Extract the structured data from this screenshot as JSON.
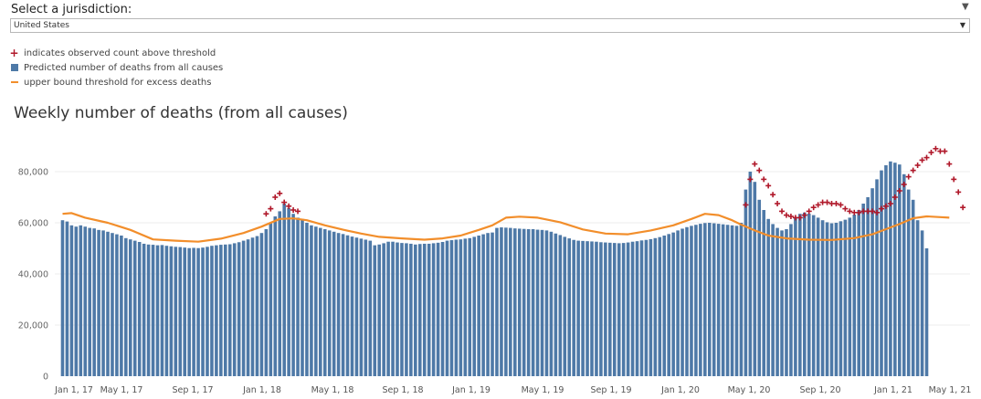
{
  "filter": {
    "label": "Select a jurisdiction:",
    "selected": "United States"
  },
  "legend": {
    "items": [
      {
        "symbol": "plus-icon",
        "label": "indicates observed count above threshold",
        "color": "#b0182a"
      },
      {
        "symbol": "square-icon",
        "label": "Predicted number of deaths from all causes",
        "color": "#4e79a7"
      },
      {
        "symbol": "line-icon",
        "label": "upper bound threshold for excess deaths",
        "color": "#f28e2b"
      }
    ]
  },
  "chart_data": {
    "type": "bar",
    "title": "Weekly number of deaths (from all causes)",
    "xlabel": "",
    "ylabel": "",
    "ylim": [
      0,
      90000
    ],
    "grid": true,
    "y_ticks": [
      0,
      20000,
      40000,
      60000,
      80000
    ],
    "y_tick_labels": [
      "0",
      "20,000",
      "40,000",
      "60,000",
      "80,000"
    ],
    "x_tick_labels": [
      "Jan 1, 17",
      "May 1, 17",
      "Sep 1, 17",
      "Jan 1, 18",
      "May 1, 18",
      "Sep 1, 18",
      "Jan 1, 19",
      "May 1, 19",
      "Sep 1, 19",
      "Jan 1, 20",
      "May 1, 20",
      "Sep 1, 20",
      "Jan 1, 21",
      "May 1, 21"
    ],
    "series": [
      {
        "name": "Predicted number of deaths from all causes",
        "color": "#4e79a7",
        "values": [
          61000,
          60500,
          59000,
          58500,
          59000,
          58500,
          58000,
          57800,
          57200,
          57000,
          56500,
          56000,
          55500,
          55000,
          54000,
          53500,
          53000,
          52500,
          51800,
          51500,
          51400,
          51200,
          51300,
          51000,
          50800,
          50600,
          50500,
          50300,
          50100,
          50200,
          50100,
          50300,
          50600,
          51000,
          51200,
          51400,
          51500,
          51600,
          52000,
          52400,
          53000,
          53500,
          54200,
          54800,
          56000,
          57500,
          60000,
          62500,
          64500,
          67500,
          65800,
          63500,
          62000,
          61500,
          60000,
          59000,
          58500,
          58000,
          57500,
          57000,
          56500,
          56000,
          55600,
          55100,
          54600,
          54200,
          53800,
          53400,
          53000,
          51200,
          51500,
          52000,
          52600,
          52600,
          52300,
          52100,
          52000,
          51800,
          51500,
          51700,
          51800,
          51800,
          52000,
          52200,
          52500,
          53000,
          53200,
          53400,
          53500,
          53800,
          54000,
          54500,
          55000,
          55500,
          56000,
          56200,
          58000,
          58200,
          58100,
          58000,
          57800,
          57700,
          57600,
          57500,
          57500,
          57300,
          57200,
          57000,
          56500,
          55800,
          55200,
          54500,
          53900,
          53300,
          53000,
          52900,
          52800,
          52700,
          52600,
          52400,
          52300,
          52200,
          52100,
          52000,
          52100,
          52300,
          52600,
          52800,
          53100,
          53300,
          53600,
          54000,
          54400,
          55000,
          55600,
          56200,
          57000,
          57700,
          58300,
          58800,
          59200,
          59600,
          59900,
          60000,
          59800,
          59600,
          59400,
          59200,
          59000,
          58800,
          60000,
          73000,
          80000,
          76000,
          69000,
          65000,
          61500,
          59500,
          58000,
          57000,
          57500,
          59500,
          62000,
          63500,
          64000,
          63600,
          63000,
          62000,
          61000,
          60200,
          59800,
          60000,
          60600,
          61200,
          62000,
          63200,
          65000,
          67500,
          70000,
          73500,
          77000,
          80500,
          82500,
          84000,
          83500,
          82800,
          79000,
          73000,
          69000,
          61000,
          57000,
          50000
        ]
      },
      {
        "name": "upper bound threshold for excess deaths",
        "color": "#f28e2b",
        "points": [
          [
            0,
            63500
          ],
          [
            2,
            63800
          ],
          [
            5,
            62000
          ],
          [
            10,
            60000
          ],
          [
            15,
            57200
          ],
          [
            20,
            53500
          ],
          [
            25,
            53000
          ],
          [
            30,
            52600
          ],
          [
            35,
            53800
          ],
          [
            40,
            56000
          ],
          [
            44,
            58500
          ],
          [
            48,
            61500
          ],
          [
            51,
            61700
          ],
          [
            54,
            61000
          ],
          [
            58,
            59000
          ],
          [
            62,
            57300
          ],
          [
            66,
            55800
          ],
          [
            70,
            54500
          ],
          [
            75,
            53900
          ],
          [
            80,
            53400
          ],
          [
            84,
            53900
          ],
          [
            88,
            55000
          ],
          [
            92,
            57200
          ],
          [
            95,
            59000
          ],
          [
            98,
            62000
          ],
          [
            101,
            62400
          ],
          [
            105,
            62000
          ],
          [
            110,
            60200
          ],
          [
            115,
            57400
          ],
          [
            120,
            55800
          ],
          [
            125,
            55500
          ],
          [
            130,
            57000
          ],
          [
            135,
            59000
          ],
          [
            139,
            61500
          ],
          [
            142,
            63500
          ],
          [
            145,
            63000
          ],
          [
            148,
            61000
          ],
          [
            150,
            59300
          ],
          [
            153,
            57000
          ],
          [
            156,
            55000
          ],
          [
            160,
            53900
          ],
          [
            165,
            53400
          ],
          [
            170,
            53300
          ],
          [
            175,
            54000
          ],
          [
            179,
            55500
          ],
          [
            182,
            57500
          ],
          [
            185,
            59500
          ],
          [
            188,
            61800
          ],
          [
            191,
            62500
          ],
          [
            194,
            62200
          ],
          [
            196,
            62000
          ]
        ]
      },
      {
        "name": "indicates observed count above threshold",
        "color": "#b0182a",
        "points": [
          [
            45,
            63500
          ],
          [
            46,
            65500
          ],
          [
            47,
            70000
          ],
          [
            48,
            71500
          ],
          [
            49,
            68000
          ],
          [
            50,
            66500
          ],
          [
            51,
            65000
          ],
          [
            52,
            64500
          ],
          [
            151,
            67000
          ],
          [
            152,
            77000
          ],
          [
            153,
            83000
          ],
          [
            154,
            80500
          ],
          [
            155,
            77000
          ],
          [
            156,
            74500
          ],
          [
            157,
            71000
          ],
          [
            158,
            67500
          ],
          [
            159,
            64500
          ],
          [
            160,
            63000
          ],
          [
            161,
            62500
          ],
          [
            162,
            62000
          ],
          [
            163,
            62000
          ],
          [
            164,
            63000
          ],
          [
            165,
            64500
          ],
          [
            166,
            66000
          ],
          [
            167,
            67000
          ],
          [
            168,
            68000
          ],
          [
            169,
            68000
          ],
          [
            170,
            67500
          ],
          [
            171,
            67500
          ],
          [
            172,
            67000
          ],
          [
            173,
            65500
          ],
          [
            174,
            64500
          ],
          [
            175,
            64000
          ],
          [
            176,
            64000
          ],
          [
            177,
            64500
          ],
          [
            178,
            64500
          ],
          [
            179,
            64500
          ],
          [
            180,
            64000
          ],
          [
            181,
            65500
          ],
          [
            182,
            66500
          ],
          [
            183,
            67500
          ],
          [
            184,
            70000
          ],
          [
            185,
            72500
          ],
          [
            186,
            75000
          ],
          [
            187,
            78000
          ],
          [
            188,
            80500
          ],
          [
            189,
            82500
          ],
          [
            190,
            84500
          ],
          [
            191,
            85500
          ],
          [
            192,
            87500
          ],
          [
            193,
            89000
          ],
          [
            194,
            88000
          ],
          [
            195,
            88000
          ],
          [
            196,
            83000
          ],
          [
            197,
            77000
          ],
          [
            198,
            72000
          ],
          [
            199,
            66000
          ]
        ]
      }
    ]
  }
}
